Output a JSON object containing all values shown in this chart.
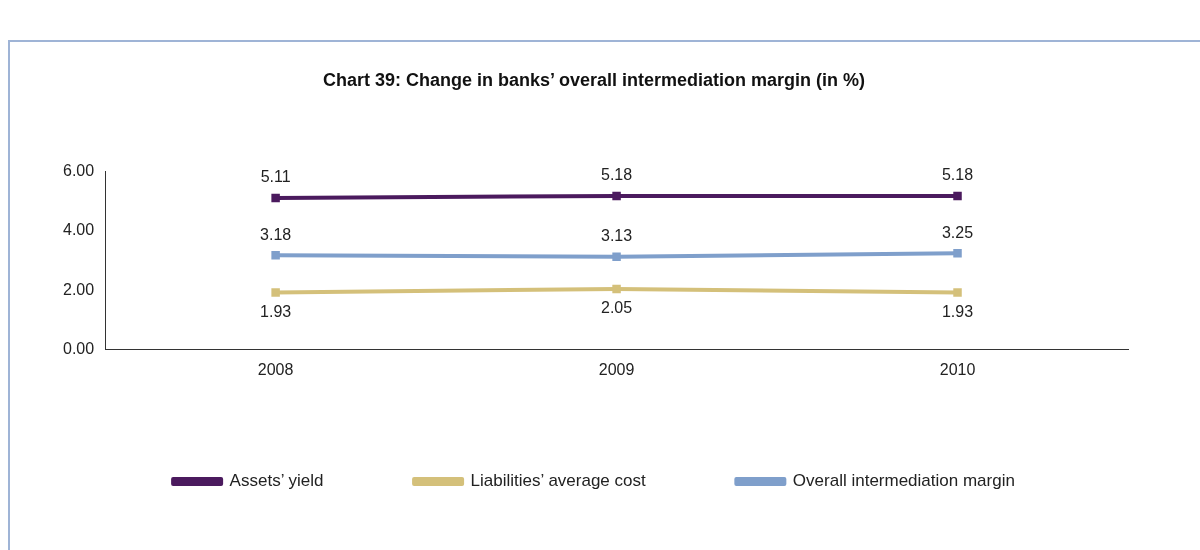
{
  "chart_data": {
    "type": "line",
    "title": "Chart 39: Change in banks’ overall intermediation margin (in %)",
    "categories": [
      "2008",
      "2009",
      "2010"
    ],
    "series": [
      {
        "name": "Assets’ yield",
        "color": "#4b1a5e",
        "values": [
          5.11,
          5.18,
          5.18
        ]
      },
      {
        "name": "Liabilities’ average cost",
        "color": "#d4c07a",
        "values": [
          1.93,
          2.05,
          1.93
        ]
      },
      {
        "name": "Overall intermediation margin",
        "color": "#7f9fcb",
        "values": [
          3.18,
          3.13,
          3.25
        ]
      }
    ],
    "ylim": [
      0,
      6
    ],
    "yticks": [
      {
        "value": 0,
        "label": "0.00"
      },
      {
        "value": 2,
        "label": "2.00"
      },
      {
        "value": 4,
        "label": "4.00"
      },
      {
        "value": 6,
        "label": "6.00"
      }
    ],
    "data_labels": true,
    "legend": "bottom",
    "marker": "square",
    "line_style": "solid",
    "grid": false
  }
}
